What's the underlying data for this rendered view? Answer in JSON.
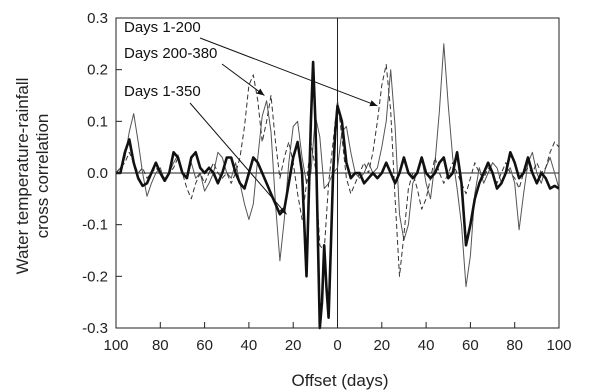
{
  "chart_data": {
    "type": "line",
    "xlabel": "Offset (days)",
    "ylabel": [
      "Water temperature-rainfall",
      "cross correlation"
    ],
    "ylim": [
      -0.3,
      0.3
    ],
    "yticks": [
      "0.3",
      "0.2",
      "0.1",
      "0.0",
      "-0.1",
      "-0.2",
      "-0.3"
    ],
    "ytick_values": [
      0.3,
      0.2,
      0.1,
      0.0,
      -0.1,
      -0.2,
      -0.3
    ],
    "xlim": [
      -100,
      100
    ],
    "xticks": [
      "100",
      "80",
      "60",
      "40",
      "20",
      "0",
      "20",
      "40",
      "60",
      "80",
      "100"
    ],
    "xtick_values": [
      -100,
      -80,
      -60,
      -40,
      -20,
      0,
      20,
      40,
      60,
      80,
      100
    ],
    "grid": false,
    "zero_lines": true,
    "series": [
      {
        "style": "thin-solid",
        "points": [
          [
            -100,
            0.0
          ],
          [
            -98,
            0.01
          ],
          [
            -96,
            0.03
          ],
          [
            -94,
            0.08
          ],
          [
            -92,
            0.115
          ],
          [
            -90,
            0.06
          ],
          [
            -88,
            0.0
          ],
          [
            -86,
            -0.045
          ],
          [
            -84,
            -0.02
          ],
          [
            -82,
            0.0
          ],
          [
            -80,
            0.01
          ],
          [
            -78,
            -0.015
          ],
          [
            -76,
            0.0
          ],
          [
            -74,
            0.02
          ],
          [
            -72,
            0.035
          ],
          [
            -70,
            0.0
          ],
          [
            -68,
            -0.01
          ],
          [
            -66,
            0.02
          ],
          [
            -64,
            -0.01
          ],
          [
            -62,
            0.0
          ],
          [
            -60,
            -0.035
          ],
          [
            -58,
            -0.02
          ],
          [
            -56,
            0.0
          ],
          [
            -54,
            0.04
          ],
          [
            -52,
            0.03
          ],
          [
            -50,
            0.0
          ],
          [
            -48,
            -0.01
          ],
          [
            -46,
            0.02
          ],
          [
            -44,
            -0.02
          ],
          [
            -42,
            -0.06
          ],
          [
            -40,
            -0.09
          ],
          [
            -38,
            -0.06
          ],
          [
            -36,
            0.03
          ],
          [
            -34,
            0.11
          ],
          [
            -32,
            0.14
          ],
          [
            -30,
            0.08
          ],
          [
            -28,
            -0.06
          ],
          [
            -26,
            -0.17
          ],
          [
            -24,
            -0.09
          ],
          [
            -22,
            0.02
          ],
          [
            -20,
            0.09
          ],
          [
            -18,
            0.1
          ],
          [
            -16,
            0.03
          ],
          [
            -14,
            -0.02
          ],
          [
            -12,
            0.0
          ],
          [
            -10,
            0.11
          ],
          [
            -8,
            0.07
          ],
          [
            -6,
            -0.03
          ],
          [
            -4,
            -0.02
          ],
          [
            -2,
            0.0
          ],
          [
            0,
            0.01
          ],
          [
            2,
            0.08
          ],
          [
            4,
            0.09
          ],
          [
            6,
            0.04
          ],
          [
            8,
            0.0
          ],
          [
            10,
            -0.01
          ],
          [
            12,
            0.0
          ],
          [
            14,
            0.02
          ],
          [
            16,
            0.0
          ],
          [
            18,
            0.01
          ],
          [
            20,
            0.05
          ],
          [
            22,
            0.1
          ],
          [
            24,
            0.2
          ],
          [
            26,
            0.09
          ],
          [
            28,
            -0.08
          ],
          [
            30,
            -0.13
          ],
          [
            32,
            -0.1
          ],
          [
            34,
            -0.02
          ],
          [
            36,
            0.0
          ],
          [
            38,
            0.03
          ],
          [
            40,
            -0.02
          ],
          [
            42,
            -0.05
          ],
          [
            44,
            0.02
          ],
          [
            46,
            0.12
          ],
          [
            48,
            0.25
          ],
          [
            50,
            0.13
          ],
          [
            52,
            0.03
          ],
          [
            54,
            -0.03
          ],
          [
            56,
            -0.1
          ],
          [
            58,
            -0.22
          ],
          [
            60,
            -0.16
          ],
          [
            62,
            -0.04
          ],
          [
            64,
            0.01
          ],
          [
            66,
            -0.02
          ],
          [
            68,
            0.0
          ],
          [
            70,
            0.02
          ],
          [
            72,
            0.01
          ],
          [
            74,
            -0.02
          ],
          [
            76,
            0.0
          ],
          [
            78,
            0.01
          ],
          [
            80,
            -0.02
          ],
          [
            82,
            -0.11
          ],
          [
            84,
            -0.04
          ],
          [
            86,
            0.02
          ],
          [
            88,
            0.04
          ],
          [
            90,
            0.0
          ],
          [
            92,
            -0.02
          ],
          [
            94,
            0.01
          ],
          [
            96,
            0.03
          ],
          [
            98,
            0.0
          ],
          [
            100,
            -0.03
          ]
        ]
      },
      {
        "style": "dashed",
        "points": [
          [
            -100,
            0.0
          ],
          [
            -98,
            0.01
          ],
          [
            -96,
            0.02
          ],
          [
            -94,
            0.04
          ],
          [
            -92,
            0.02
          ],
          [
            -90,
            0.0
          ],
          [
            -88,
            0.01
          ],
          [
            -86,
            -0.01
          ],
          [
            -84,
            0.0
          ],
          [
            -82,
            0.01
          ],
          [
            -80,
            0.0
          ],
          [
            -78,
            -0.01
          ],
          [
            -76,
            0.0
          ],
          [
            -74,
            0.01
          ],
          [
            -72,
            0.03
          ],
          [
            -70,
            0.0
          ],
          [
            -68,
            -0.03
          ],
          [
            -66,
            -0.05
          ],
          [
            -64,
            -0.02
          ],
          [
            -62,
            0.0
          ],
          [
            -60,
            -0.02
          ],
          [
            -58,
            0.0
          ],
          [
            -56,
            0.02
          ],
          [
            -54,
            0.0
          ],
          [
            -52,
            -0.01
          ],
          [
            -50,
            0.0
          ],
          [
            -48,
            -0.02
          ],
          [
            -46,
            0.0
          ],
          [
            -44,
            0.03
          ],
          [
            -42,
            0.09
          ],
          [
            -40,
            0.17
          ],
          [
            -38,
            0.19
          ],
          [
            -36,
            0.14
          ],
          [
            -34,
            0.06
          ],
          [
            -32,
            0.1
          ],
          [
            -30,
            0.15
          ],
          [
            -28,
            0.06
          ],
          [
            -26,
            -0.01
          ],
          [
            -24,
            0.03
          ],
          [
            -22,
            0.06
          ],
          [
            -20,
            0.02
          ],
          [
            -18,
            -0.04
          ],
          [
            -16,
            -0.09
          ],
          [
            -14,
            -0.02
          ],
          [
            -12,
            0.06
          ],
          [
            -10,
            0.01
          ],
          [
            -8,
            -0.14
          ],
          [
            -6,
            -0.15
          ],
          [
            -4,
            -0.02
          ],
          [
            -2,
            0.06
          ],
          [
            0,
            0.14
          ],
          [
            2,
            0.07
          ],
          [
            4,
            -0.01
          ],
          [
            6,
            -0.04
          ],
          [
            8,
            -0.02
          ],
          [
            10,
            0.0
          ],
          [
            12,
            0.02
          ],
          [
            14,
            0.0
          ],
          [
            16,
            0.04
          ],
          [
            18,
            0.1
          ],
          [
            20,
            0.17
          ],
          [
            22,
            0.21
          ],
          [
            24,
            0.12
          ],
          [
            26,
            -0.05
          ],
          [
            28,
            -0.2
          ],
          [
            30,
            -0.12
          ],
          [
            32,
            -0.03
          ],
          [
            34,
            0.0
          ],
          [
            36,
            -0.03
          ],
          [
            38,
            -0.07
          ],
          [
            40,
            -0.05
          ],
          [
            42,
            -0.01
          ],
          [
            44,
            0.03
          ],
          [
            46,
            0.0
          ],
          [
            48,
            -0.02
          ],
          [
            50,
            0.0
          ],
          [
            52,
            0.02
          ],
          [
            54,
            0.0
          ],
          [
            56,
            -0.02
          ],
          [
            58,
            -0.04
          ],
          [
            60,
            -0.01
          ],
          [
            62,
            0.02
          ],
          [
            64,
            0.0
          ],
          [
            66,
            -0.01
          ],
          [
            68,
            0.01
          ],
          [
            70,
            0.0
          ],
          [
            72,
            -0.02
          ],
          [
            74,
            0.0
          ],
          [
            76,
            0.02
          ],
          [
            78,
            0.0
          ],
          [
            80,
            -0.01
          ],
          [
            82,
            -0.03
          ],
          [
            84,
            0.0
          ],
          [
            86,
            0.01
          ],
          [
            88,
            0.0
          ],
          [
            90,
            0.02
          ],
          [
            92,
            0.0
          ],
          [
            94,
            0.01
          ],
          [
            96,
            0.04
          ],
          [
            98,
            0.06
          ],
          [
            100,
            0.05
          ]
        ]
      },
      {
        "style": "thick-solid",
        "points": [
          [
            -100,
            0.0
          ],
          [
            -98,
            0.0
          ],
          [
            -96,
            0.04
          ],
          [
            -94,
            0.065
          ],
          [
            -92,
            0.02
          ],
          [
            -90,
            -0.01
          ],
          [
            -88,
            -0.025
          ],
          [
            -86,
            -0.02
          ],
          [
            -84,
            0.0
          ],
          [
            -82,
            0.02
          ],
          [
            -80,
            0.0
          ],
          [
            -78,
            -0.015
          ],
          [
            -76,
            0.0
          ],
          [
            -74,
            0.04
          ],
          [
            -72,
            0.03
          ],
          [
            -70,
            0.0
          ],
          [
            -68,
            -0.01
          ],
          [
            -66,
            0.03
          ],
          [
            -64,
            0.04
          ],
          [
            -62,
            0.01
          ],
          [
            -60,
            0.0
          ],
          [
            -58,
            0.01
          ],
          [
            -56,
            0.0
          ],
          [
            -54,
            -0.02
          ],
          [
            -52,
            0.0
          ],
          [
            -50,
            0.03
          ],
          [
            -48,
            0.03
          ],
          [
            -46,
            0.0
          ],
          [
            -44,
            -0.02
          ],
          [
            -42,
            -0.03
          ],
          [
            -40,
            0.0
          ],
          [
            -38,
            0.03
          ],
          [
            -36,
            0.02
          ],
          [
            -34,
            0.0
          ],
          [
            -32,
            -0.02
          ],
          [
            -30,
            -0.04
          ],
          [
            -28,
            -0.06
          ],
          [
            -26,
            -0.08
          ],
          [
            -24,
            -0.07
          ],
          [
            -22,
            -0.02
          ],
          [
            -20,
            0.03
          ],
          [
            -18,
            0.06
          ],
          [
            -16,
            0.0
          ],
          [
            -14,
            -0.2
          ],
          [
            -12,
            0.1
          ],
          [
            -11,
            0.215
          ],
          [
            -10,
            0.1
          ],
          [
            -9,
            -0.1
          ],
          [
            -8,
            -0.3
          ],
          [
            -7,
            -0.25
          ],
          [
            -6,
            -0.14
          ],
          [
            -5,
            -0.22
          ],
          [
            -4,
            -0.28
          ],
          [
            -3,
            -0.14
          ],
          [
            -2,
            0.0
          ],
          [
            -1,
            0.08
          ],
          [
            0,
            0.13
          ],
          [
            2,
            0.1
          ],
          [
            4,
            0.02
          ],
          [
            6,
            -0.01
          ],
          [
            8,
            0.0
          ],
          [
            10,
            0.0
          ],
          [
            12,
            -0.02
          ],
          [
            14,
            -0.01
          ],
          [
            16,
            0.0
          ],
          [
            18,
            -0.01
          ],
          [
            20,
            0.0
          ],
          [
            22,
            0.02
          ],
          [
            24,
            0.0
          ],
          [
            26,
            -0.02
          ],
          [
            28,
            0.0
          ],
          [
            30,
            0.03
          ],
          [
            32,
            0.0
          ],
          [
            34,
            -0.01
          ],
          [
            36,
            0.0
          ],
          [
            38,
            0.03
          ],
          [
            40,
            0.0
          ],
          [
            42,
            -0.01
          ],
          [
            44,
            0.0
          ],
          [
            46,
            0.02
          ],
          [
            48,
            0.03
          ],
          [
            50,
            -0.01
          ],
          [
            52,
            0.0
          ],
          [
            54,
            0.04
          ],
          [
            56,
            -0.02
          ],
          [
            58,
            -0.14
          ],
          [
            60,
            -0.1
          ],
          [
            62,
            -0.05
          ],
          [
            64,
            -0.02
          ],
          [
            66,
            0.0
          ],
          [
            68,
            0.02
          ],
          [
            70,
            0.0
          ],
          [
            72,
            -0.03
          ],
          [
            74,
            -0.02
          ],
          [
            76,
            0.0
          ],
          [
            78,
            0.04
          ],
          [
            80,
            0.02
          ],
          [
            82,
            -0.01
          ],
          [
            84,
            0.0
          ],
          [
            86,
            0.03
          ],
          [
            88,
            0.0
          ],
          [
            90,
            -0.02
          ],
          [
            92,
            0.0
          ],
          [
            94,
            -0.01
          ],
          [
            96,
            -0.03
          ],
          [
            98,
            -0.025
          ],
          [
            100,
            -0.03
          ]
        ]
      }
    ],
    "annotations": [
      {
        "text": "Days 1-200",
        "arrow_tip": [
          18,
          0.13
        ]
      },
      {
        "text": "Days 200-380",
        "arrow_tip": [
          -33,
          0.15
        ]
      },
      {
        "text": "Days 1-350",
        "arrow_tip": [
          -23,
          -0.08
        ]
      }
    ]
  }
}
